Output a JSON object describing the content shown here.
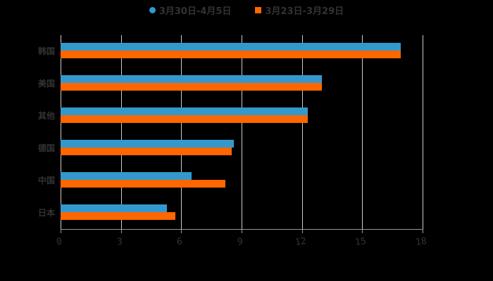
{
  "chart_data": {
    "type": "bar",
    "orientation": "horizontal",
    "title": "",
    "xlabel": "",
    "ylabel": "",
    "categories": [
      "韩国",
      "美国",
      "其他",
      "德国",
      "中国",
      "日本"
    ],
    "series": [
      {
        "name": "3月30日-4月5日",
        "color": "#3399cc",
        "marker": "circle",
        "values": [
          16.9,
          13.0,
          12.3,
          8.6,
          6.5,
          5.3
        ]
      },
      {
        "name": "3月23日-3月29日",
        "color": "#ff6600",
        "marker": "square",
        "values": [
          16.9,
          13.0,
          12.3,
          8.5,
          8.2,
          5.7
        ]
      }
    ],
    "xlim": [
      0,
      18
    ],
    "xticks": [
      "0",
      "3",
      "6",
      "9",
      "12",
      "15",
      "18"
    ],
    "grid": true,
    "legend_position": "top"
  },
  "legend": {
    "items": [
      {
        "label": "3月30日-4月5日",
        "color": "#3399cc"
      },
      {
        "label": "3月23日-3月29日",
        "color": "#ff6600"
      }
    ]
  }
}
